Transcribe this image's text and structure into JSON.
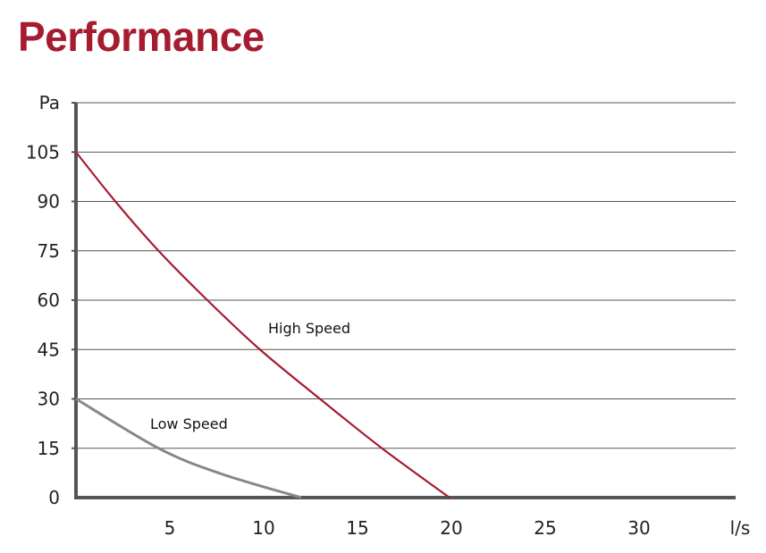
{
  "title": "Performance",
  "chart_data": {
    "type": "line",
    "title": "Performance",
    "xlabel": "l/s",
    "ylabel": "Pa",
    "xlim": [
      0,
      35
    ],
    "ylim": [
      0,
      120
    ],
    "x_ticks": [
      5,
      10,
      15,
      20,
      25,
      30
    ],
    "y_ticks": [
      0,
      15,
      30,
      45,
      60,
      75,
      90,
      105
    ],
    "grid": true,
    "series": [
      {
        "name": "High Speed",
        "color": "#a51c30",
        "x": [
          0,
          2.1,
          4.4,
          7.0,
          9.8,
          13.0,
          16.3,
          19.9
        ],
        "y": [
          105,
          90,
          75,
          60,
          45,
          30,
          15,
          0
        ]
      },
      {
        "name": "Low Speed",
        "color": "#888888",
        "x": [
          0,
          4.4,
          7.7,
          12.0
        ],
        "y": [
          30,
          15,
          7.3,
          0
        ]
      }
    ]
  }
}
